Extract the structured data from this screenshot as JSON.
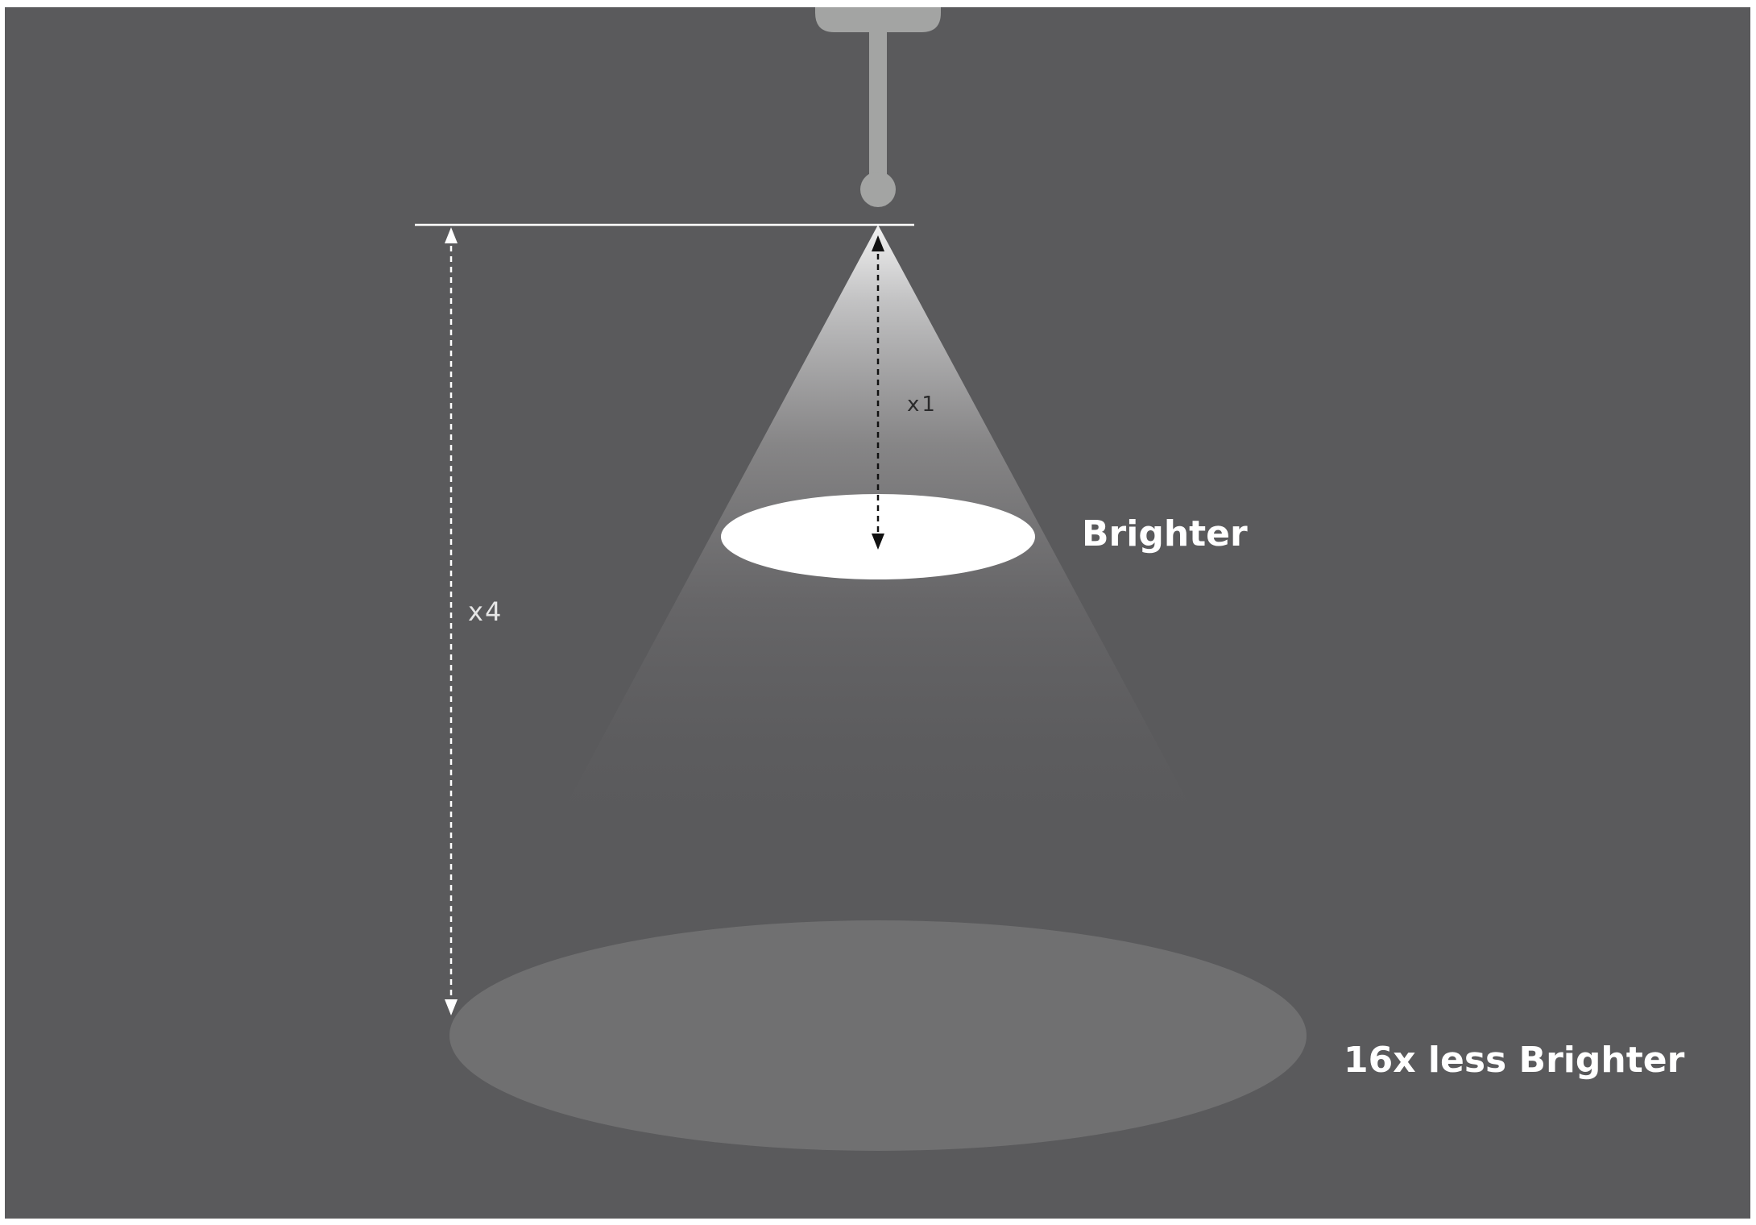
{
  "labels": {
    "near_distance": "x1",
    "far_distance": "x4",
    "near_spot": "Brighter",
    "far_spot": "16x less Brighter"
  },
  "colors": {
    "background": "#5a5a5c",
    "fixture": "#a3a4a3",
    "reference_line": "#ffffff",
    "near_spot": "#ffffff",
    "far_spot": "#707071",
    "near_arrow": "#111111",
    "far_arrow": "#ffffff"
  },
  "icons": {
    "fixture": "ceiling-light-icon"
  }
}
